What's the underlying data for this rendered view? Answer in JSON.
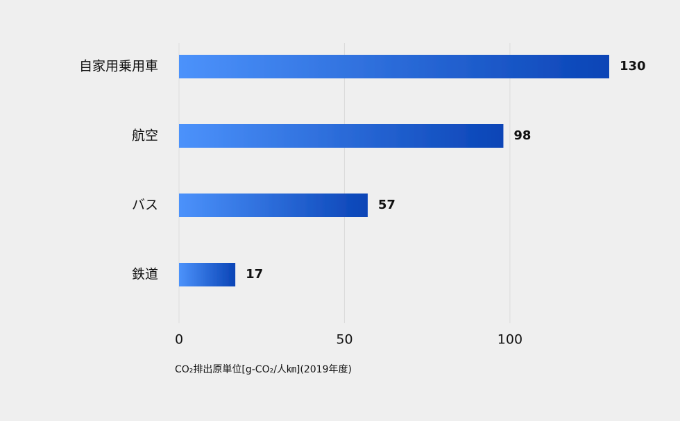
{
  "chart_data": {
    "type": "hbar",
    "categories": [
      "自家用乗用車",
      "航空",
      "バス",
      "鉄道"
    ],
    "values": [
      130,
      98,
      57,
      17
    ],
    "xlabel": "CO₂排出原単位[g-CO₂/人㎞](2019年度)",
    "xlim": [
      0,
      130
    ],
    "xticks": [
      0,
      50,
      100
    ],
    "grid": true,
    "colors": [
      "#4c92fb",
      "#0a44b6"
    ]
  }
}
